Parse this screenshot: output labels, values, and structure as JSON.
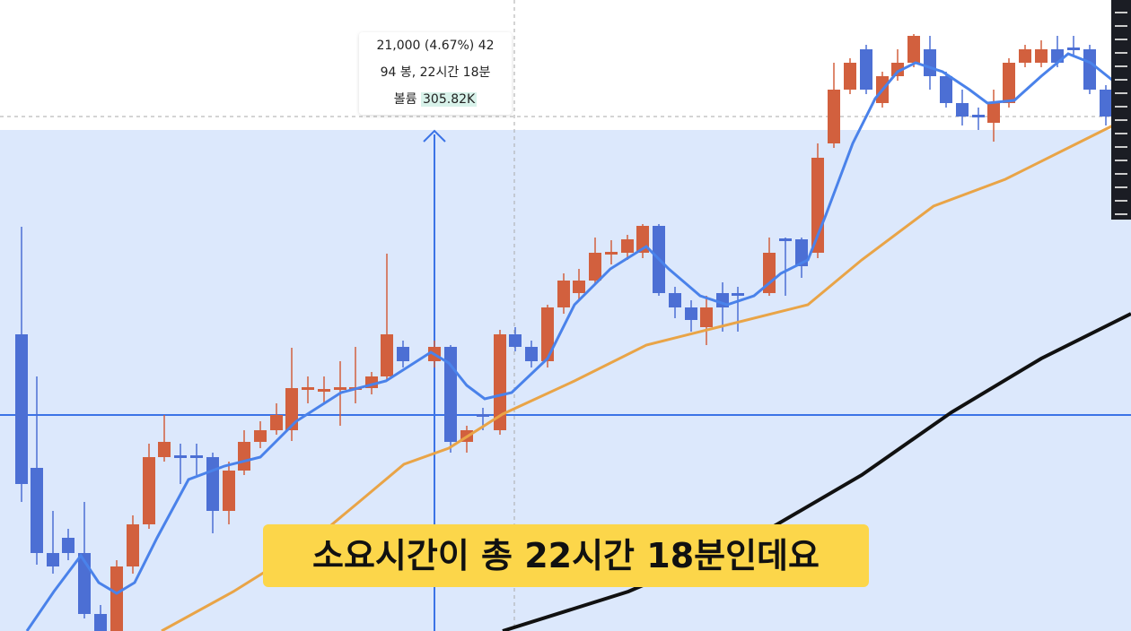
{
  "tooltip": {
    "line1": "21,000 (4.67%) 42",
    "line2": "94 봉, 22시간 18분",
    "volume_label": "볼륨",
    "volume_value": "305.82K"
  },
  "caption": "소요시간이 총 22시간 18분인데요"
}
